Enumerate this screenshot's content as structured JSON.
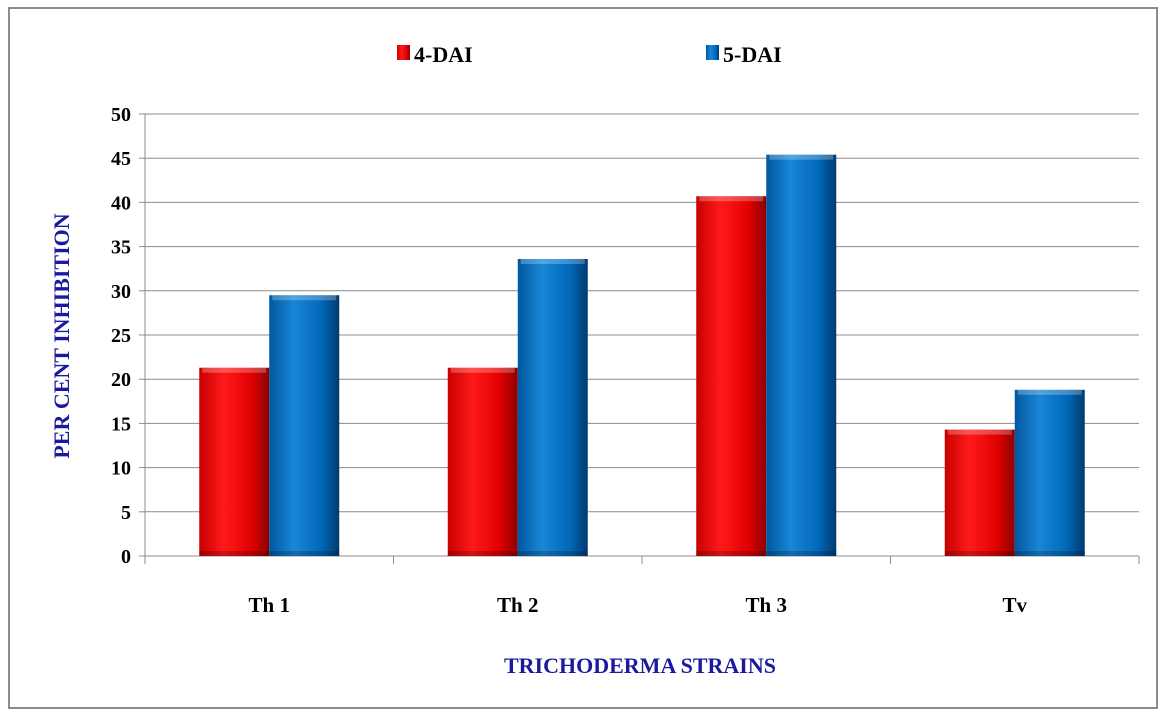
{
  "chart_data": {
    "type": "bar",
    "categories": [
      "Th 1",
      "Th 2",
      "Th 3",
      "Tv"
    ],
    "series": [
      {
        "name": "4-DAI",
        "values": [
          21.3,
          21.3,
          40.7,
          14.3
        ],
        "color": "#ff0000"
      },
      {
        "name": "5-DAI",
        "values": [
          29.5,
          33.6,
          45.4,
          18.8
        ],
        "color": "#0070c0"
      }
    ],
    "title": "",
    "xlabel": "TRICHODERMA STRAINS",
    "ylabel": "PER CENT INHIBITION",
    "ylim": [
      0,
      50
    ],
    "yticks": [
      "0",
      "5",
      "10",
      "15",
      "20",
      "25",
      "30",
      "35",
      "40",
      "45",
      "50"
    ],
    "grid": true,
    "legend_position": "top-center"
  }
}
